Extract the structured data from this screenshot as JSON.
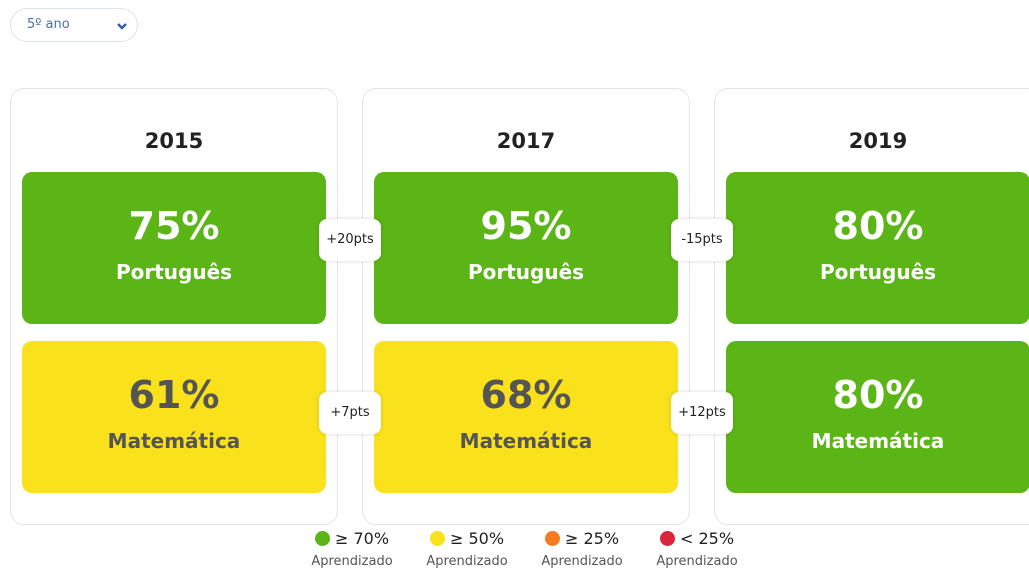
{
  "select": {
    "label": "5º ano"
  },
  "years": [
    {
      "year": "2015",
      "cards": [
        {
          "value": "75%",
          "subject": "Português",
          "color": "#5bb516",
          "text_color": "#ffffff"
        },
        {
          "value": "61%",
          "subject": "Matemática",
          "color": "#f9e11c",
          "text_color": "#555555"
        }
      ]
    },
    {
      "year": "2017",
      "cards": [
        {
          "value": "95%",
          "subject": "Português",
          "color": "#5bb516",
          "text_color": "#ffffff"
        },
        {
          "value": "68%",
          "subject": "Matemática",
          "color": "#f9e11c",
          "text_color": "#555555"
        }
      ]
    },
    {
      "year": "2019",
      "cards": [
        {
          "value": "80%",
          "subject": "Português",
          "color": "#5bb516",
          "text_color": "#ffffff"
        },
        {
          "value": "80%",
          "subject": "Matemática",
          "color": "#5bb516",
          "text_color": "#ffffff"
        }
      ]
    }
  ],
  "diffs": [
    [
      "+20pts",
      "+7pts"
    ],
    [
      "-15pts",
      "+12pts"
    ]
  ],
  "legend": [
    {
      "threshold": "≥ 70%",
      "label": "Aprendizado",
      "color": "#5bb516"
    },
    {
      "threshold": "≥ 50%",
      "label": "Aprendizado",
      "color": "#f9e11c"
    },
    {
      "threshold": "≥ 25%",
      "label": "Aprendizado",
      "color": "#f47b20"
    },
    {
      "threshold": "< 25%",
      "label": "Aprendizado",
      "color": "#d9263a"
    }
  ]
}
